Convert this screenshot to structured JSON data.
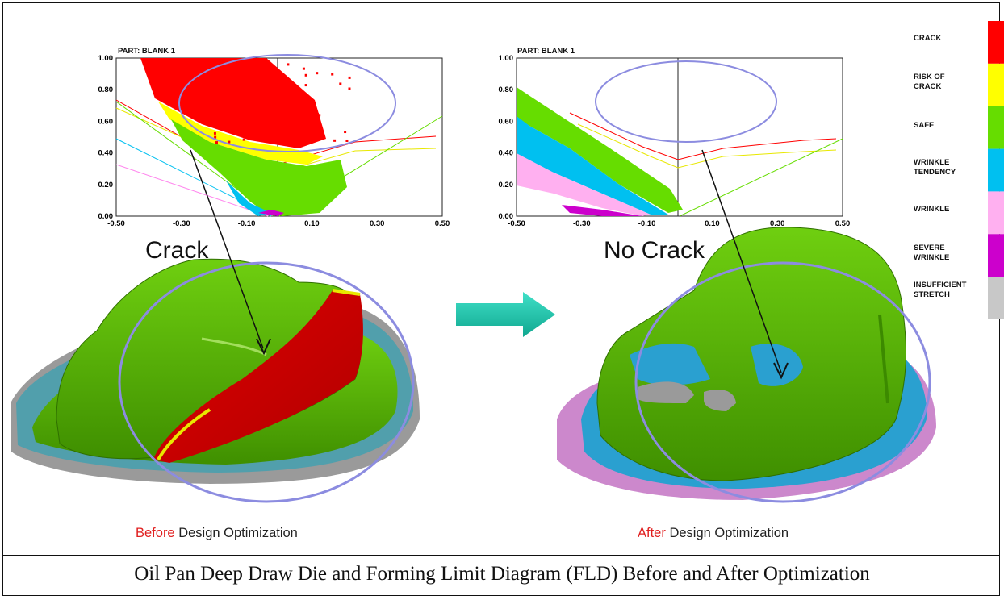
{
  "caption": "Oil Pan Deep Draw Die and Forming Limit Diagram (FLD) Before and After Optimization",
  "before": {
    "fld_title": "PART:   BLANK 1",
    "label": "Crack",
    "caption_highlight": "Before",
    "caption_rest": " Design Optimization"
  },
  "after": {
    "fld_title": "PART:   BLANK 1",
    "label": "No Crack",
    "caption_highlight": "After",
    "caption_rest": " Design Optimization"
  },
  "legend": [
    {
      "label": "CRACK",
      "color": "#ff0000"
    },
    {
      "label": "RISK OF CRACK",
      "color": "#ffff00"
    },
    {
      "label": "SAFE",
      "color": "#66dd00"
    },
    {
      "label": "WRINKLE TENDENCY",
      "color": "#00c0f0"
    },
    {
      "label": "WRINKLE",
      "color": "#ffb0f0"
    },
    {
      "label": "SEVERE WRINKLE",
      "color": "#cc00cc"
    },
    {
      "label": "INSUFFICIENT STRETCH",
      "color": "#c8c8c8"
    }
  ],
  "fld_axes": {
    "x_ticks": [
      "-0.50",
      "-0.30",
      "-0.10",
      "0.10",
      "0.30",
      "0.50"
    ],
    "y_ticks": [
      "0.00",
      "0.20",
      "0.40",
      "0.60",
      "0.80",
      "1.00"
    ]
  }
}
